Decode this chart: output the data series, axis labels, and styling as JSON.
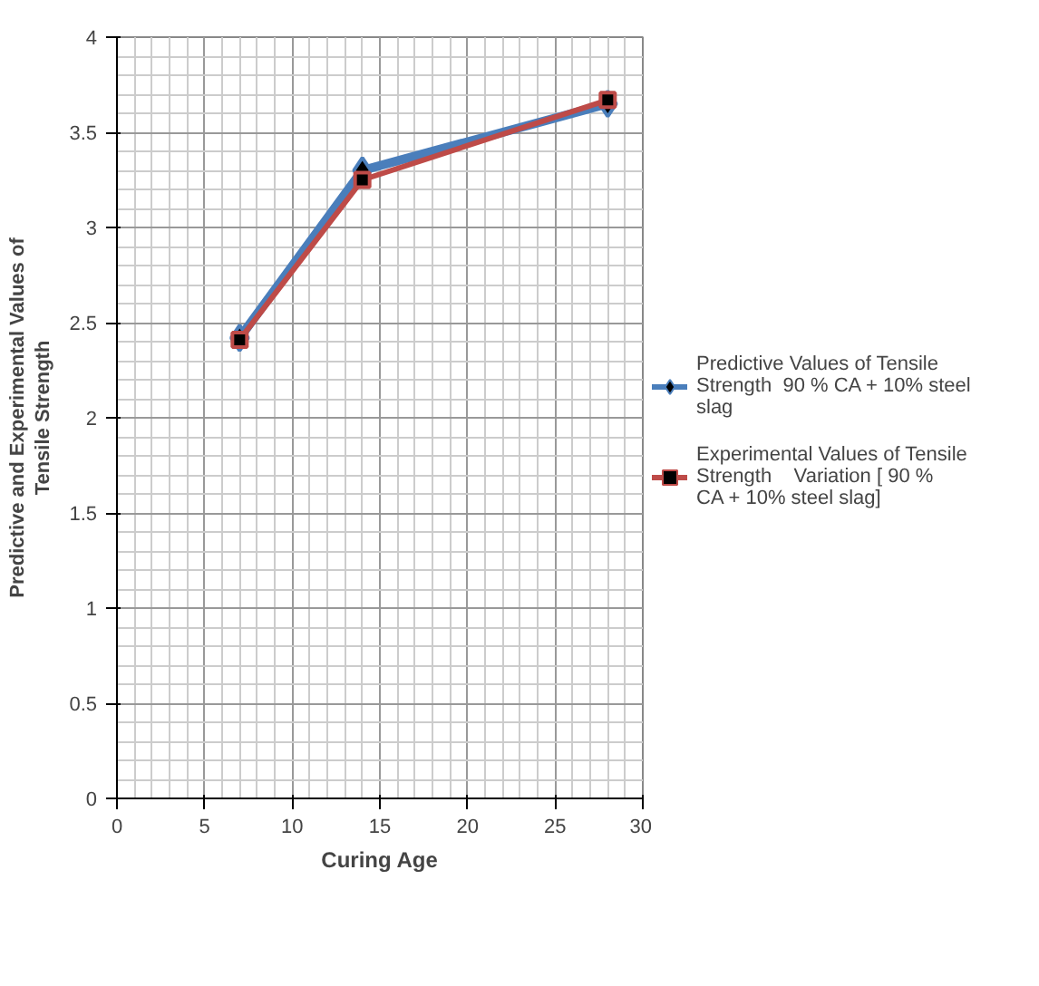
{
  "chart_data": {
    "type": "line",
    "xlabel": "Curing Age",
    "ylabel": "Predictive and Experimental Values of Tensile Strength",
    "x": [
      7,
      14,
      28
    ],
    "series": [
      {
        "name": "Predictive Values of Tensile Strength  90 % CA + 10% steel slag",
        "color": "#4a7ebb",
        "values": [
          2.42,
          3.3,
          3.65
        ],
        "marker": "diamond"
      },
      {
        "name": "Experimental Values of Tensile Strength    Variation [ 90 % CA + 10% steel slag]",
        "color": "#be4b48",
        "values": [
          2.41,
          3.25,
          3.67
        ],
        "marker": "square"
      }
    ],
    "xlim": [
      0,
      30
    ],
    "xticks": [
      0,
      5,
      10,
      15,
      20,
      25,
      30
    ],
    "ylim": [
      0,
      4
    ],
    "yticks": [
      0,
      0.5,
      1,
      1.5,
      2,
      2.5,
      3,
      3.5,
      4
    ],
    "grid": true,
    "legend": "right",
    "line_style": "solid"
  }
}
